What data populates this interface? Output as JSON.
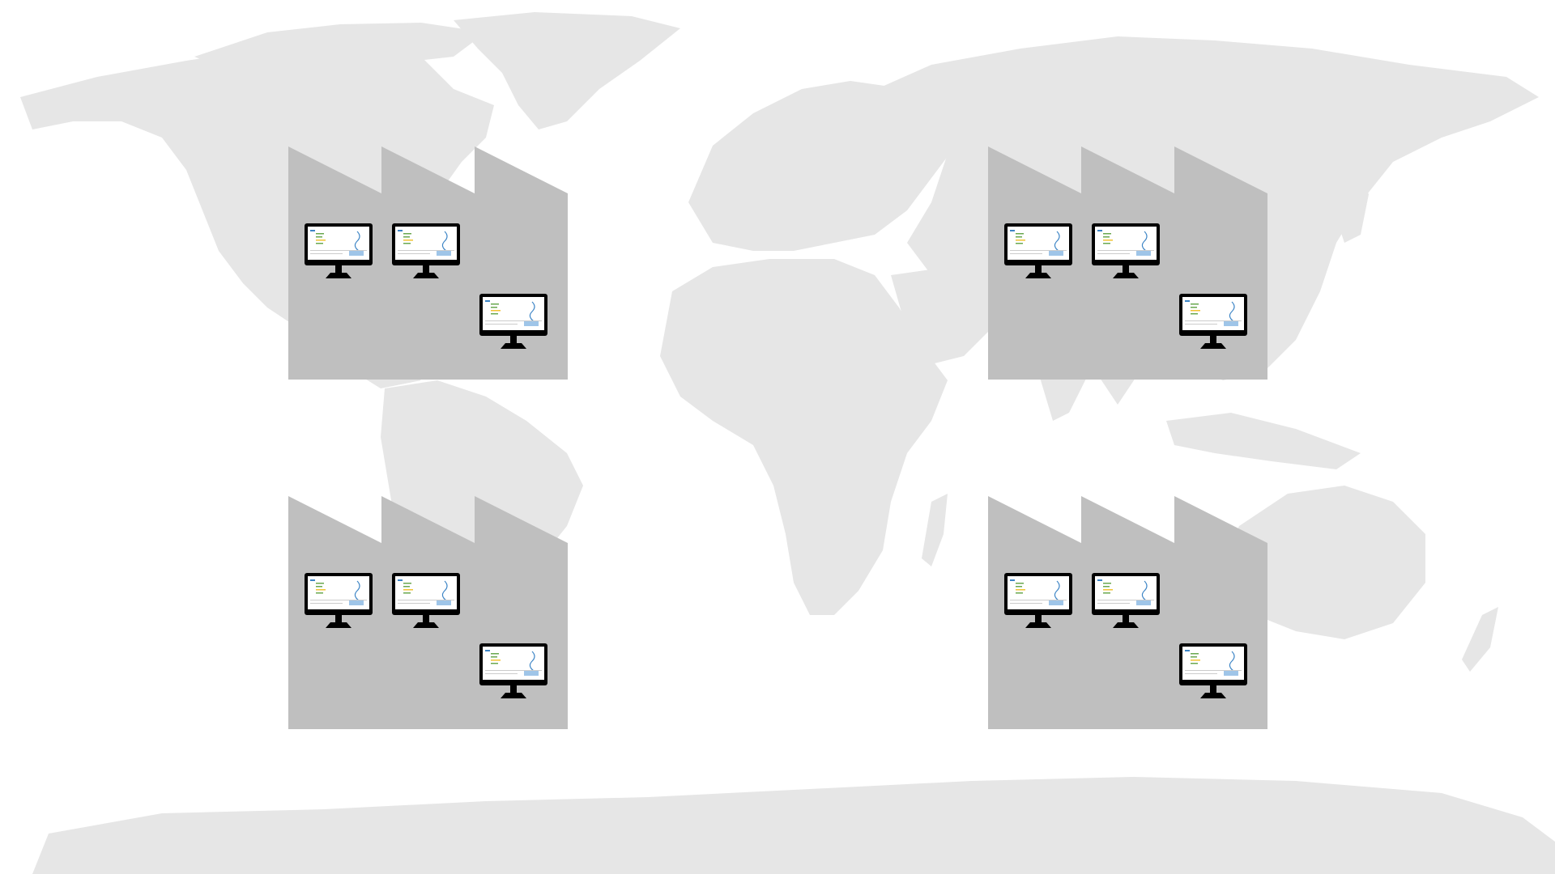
{
  "colors": {
    "background": "#ffffff",
    "landmass": "#e6e6e6",
    "factory": "#bfbfbf",
    "monitor_frame": "#000000",
    "monitor_screen": "#ffffff",
    "screen_accent_green": "#6aa84f",
    "screen_accent_yellow": "#f1c232",
    "screen_accent_blue": "#3d85c6"
  },
  "icons": {
    "map": "world-map",
    "factory": "factory-icon",
    "monitor": "computer-monitor-icon"
  },
  "factories": [
    {
      "id": "factory-north-america",
      "monitors": 3
    },
    {
      "id": "factory-asia",
      "monitors": 3
    },
    {
      "id": "factory-south-america",
      "monitors": 3
    },
    {
      "id": "factory-australia",
      "monitors": 3
    }
  ]
}
